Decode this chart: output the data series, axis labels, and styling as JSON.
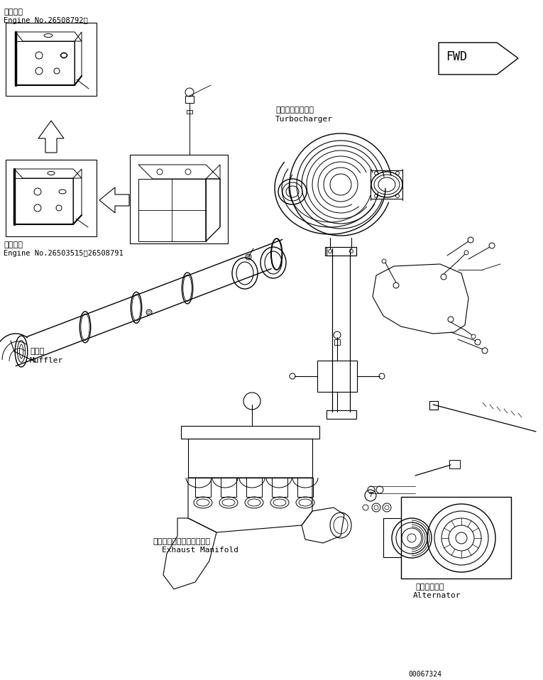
{
  "bg_color": "#ffffff",
  "line_color": "#000000",
  "fig_width": 7.65,
  "fig_height": 9.58,
  "dpi": 100,
  "labels": {
    "top_header1": "適用号機",
    "top_header2": "Engine No.26508792～",
    "bottom_header1": "適用号機",
    "bottom_header2": "Engine No.26503515～26508791",
    "muffler_jp": "マフラ",
    "muffler_en": "Muffler",
    "turbo_jp": "ターボチャージャ",
    "turbo_en": "Turbocharger",
    "exhaust_jp": "エキゾーストマニホールド",
    "exhaust_en": "Exhaust Manifold",
    "alternator_jp": "オルタネータ",
    "alternator_en": "Alternator",
    "fwd": "FWD",
    "part_no": "00067324"
  }
}
